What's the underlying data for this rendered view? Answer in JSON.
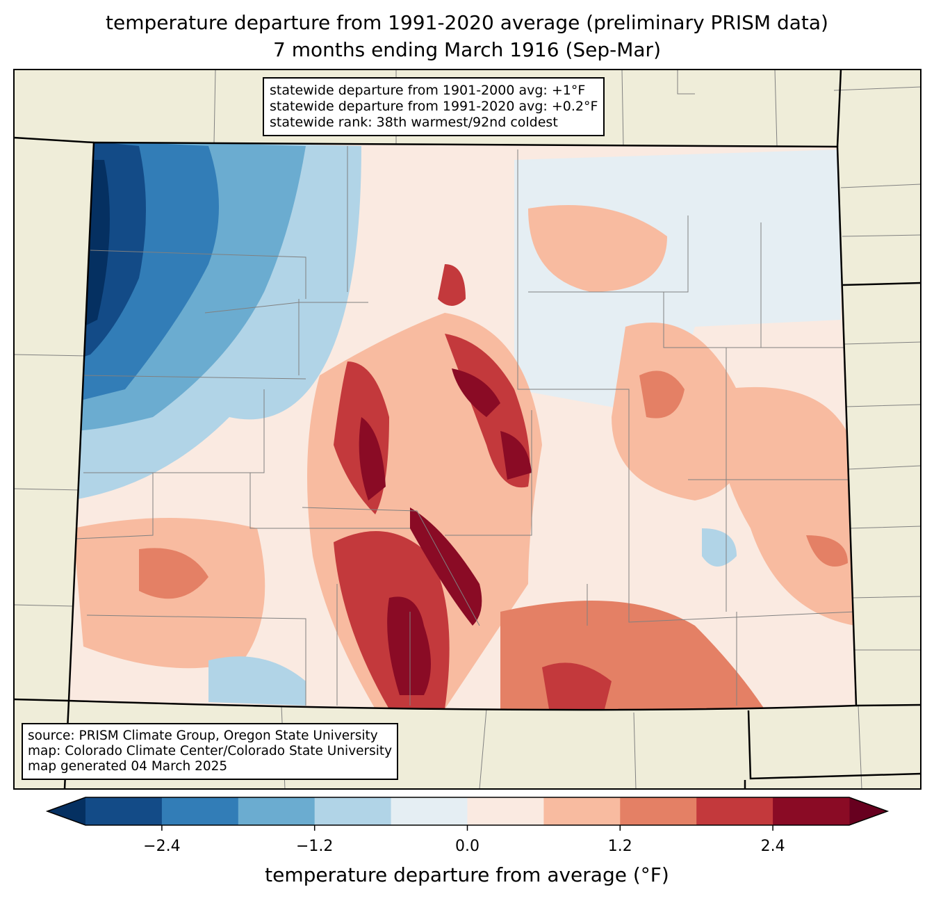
{
  "title": {
    "line1": "temperature departure from 1991-2020 average (preliminary PRISM data)",
    "line2": "7 months ending March 1916 (Sep-Mar)"
  },
  "stats_box": {
    "line1": "statewide departure from 1901-2000 avg: +1°F",
    "line2": "statewide departure from 1991-2020 avg: +0.2°F",
    "line3": "statewide rank: 38th warmest/92nd coldest"
  },
  "source_box": {
    "line1": "source: PRISM Climate Group, Oregon State University",
    "line2": "map: Colorado Climate Center/Colorado State University",
    "line3": "map generated 04 March 2025"
  },
  "colorbar": {
    "label": "temperature departure from average (°F)",
    "levels": [
      -3.0,
      -2.4,
      -1.8,
      -1.2,
      -0.6,
      0.0,
      0.6,
      1.2,
      1.8,
      2.4,
      3.0
    ],
    "colors": [
      "#134b87",
      "#327db7",
      "#6bacd0",
      "#b1d4e7",
      "#e5eef3",
      "#faeae1",
      "#f8bba0",
      "#e48065",
      "#c3393c",
      "#8a0b25"
    ],
    "under_color": "#053061",
    "over_color": "#67001f",
    "ticks": [
      "−2.4",
      "−1.2",
      "0.0",
      "1.2",
      "2.4"
    ]
  },
  "map_colors": {
    "land": "#efedd9",
    "county_lines": "#808080",
    "state_lines": "#000000"
  }
}
